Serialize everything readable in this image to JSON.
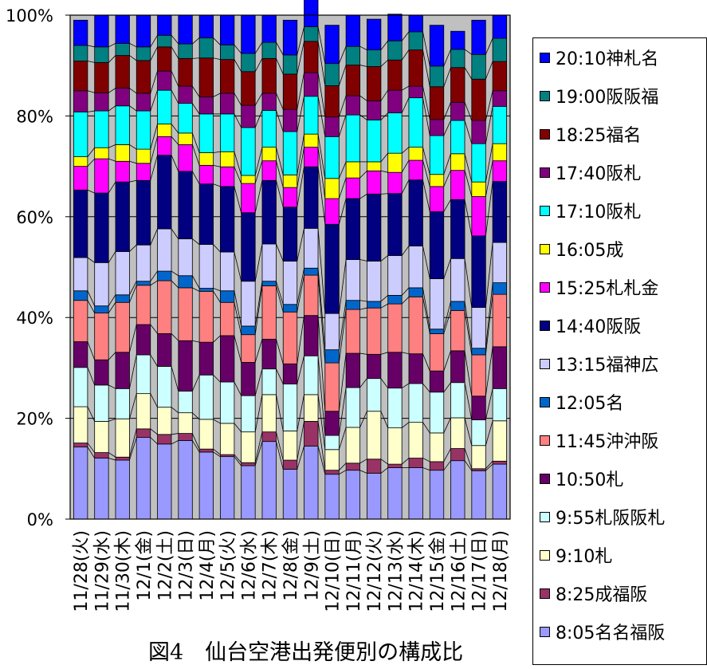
{
  "chart_data": {
    "type": "bar",
    "stacked": true,
    "percent": true,
    "caption": "図4　仙台空港出発便別の構成比",
    "yticks": [
      "0%",
      "20%",
      "40%",
      "60%",
      "80%",
      "100%"
    ],
    "ylim": [
      0,
      100
    ],
    "grid": true,
    "legend_position": "right",
    "categories": [
      "11/28(火)",
      "11/29(水)",
      "11/30(木)",
      "12/1(金)",
      "12/2(土)",
      "12/3(日)",
      "12/4(月)",
      "12/5(火)",
      "12/6(水)",
      "12/7(木)",
      "12/8(金)",
      "12/9(土)",
      "12/10(日)",
      "12/11(月)",
      "12/12(火)",
      "12/13(水)",
      "12/14(木)",
      "12/15(金)",
      "12/16(土)",
      "12/17(日)",
      "12/18(月)"
    ],
    "series": [
      {
        "name": "8:05名名福阪",
        "color": "#9999FF",
        "values": [
          14.3,
          12.1,
          11.7,
          16.2,
          14.9,
          15.6,
          13.3,
          12.4,
          10.6,
          15.4,
          9.9,
          14.5,
          8.9,
          9.7,
          9.1,
          10.2,
          10.2,
          9.7,
          11.6,
          9.6,
          10.9
        ]
      },
      {
        "name": "8:25成福阪",
        "color": "#993366",
        "values": [
          0.8,
          1.1,
          0.6,
          1.7,
          1.9,
          1.4,
          0.6,
          0.4,
          0.6,
          1.9,
          1.8,
          4.9,
          0.8,
          1.4,
          2.8,
          0.7,
          1.9,
          1.7,
          2.4,
          0.4,
          0.6
        ]
      },
      {
        "name": "9:10札",
        "color": "#FFFFCC",
        "values": [
          7.2,
          6.2,
          7.6,
          7.0,
          5.4,
          4.1,
          5.9,
          6.2,
          6.1,
          7.4,
          5.8,
          5.3,
          4.1,
          7.1,
          9.5,
          7.2,
          7.1,
          5.7,
          6.1,
          4.6,
          8.0
        ]
      },
      {
        "name": "9:55札阪阪札",
        "color": "#CCFFFF",
        "values": [
          7.8,
          7.2,
          6.0,
          7.7,
          8.1,
          4.3,
          8.8,
          8.2,
          7.2,
          5.1,
          9.3,
          7.7,
          2.8,
          7.9,
          6.5,
          7.9,
          7.7,
          8.1,
          7.0,
          5.1,
          6.4
        ]
      },
      {
        "name": "10:50札",
        "color": "#660066",
        "values": [
          5.1,
          5.0,
          7.2,
          6.0,
          6.5,
          10.0,
          6.5,
          9.2,
          6.6,
          5.9,
          4.0,
          8.0,
          4.8,
          6.8,
          4.8,
          7.1,
          5.9,
          4.2,
          6.3,
          4.7,
          8.3
        ]
      },
      {
        "name": "11:45沖沖阪",
        "color": "#FF8080",
        "values": [
          8.2,
          9.3,
          9.9,
          7.8,
          10.5,
          10.5,
          10.1,
          6.6,
          5.5,
          10.6,
          10.3,
          8.0,
          9.6,
          8.7,
          9.2,
          9.6,
          11.3,
          7.4,
          8.0,
          8.2,
          10.4
        ]
      },
      {
        "name": "12:05名",
        "color": "#0066CC",
        "values": [
          1.9,
          1.4,
          1.5,
          0.8,
          1.9,
          2.4,
          0.6,
          2.3,
          1.7,
          0.9,
          1.5,
          1.4,
          2.6,
          1.8,
          1.3,
          1.7,
          1.8,
          0.9,
          1.8,
          1.3,
          2.3
        ]
      },
      {
        "name": "13:15福神広",
        "color": "#CCCCFF",
        "values": [
          6.6,
          8.6,
          8.6,
          7.2,
          8.4,
          7.3,
          8.7,
          7.7,
          8.9,
          7.4,
          8.6,
          7.9,
          7.2,
          8.1,
          8.0,
          7.9,
          8.3,
          10.0,
          8.5,
          8.1,
          8.0
        ]
      },
      {
        "name": "14:40阪阪",
        "color": "#000080",
        "values": [
          13.4,
          13.8,
          13.8,
          12.8,
          14.6,
          13.4,
          12.0,
          13.0,
          13.6,
          12.6,
          10.7,
          12.2,
          17.7,
          12.1,
          13.3,
          12.3,
          13.1,
          13.3,
          11.7,
          14.2,
          12.1
        ]
      },
      {
        "name": "15:25札札金",
        "color": "#FF00FF",
        "values": [
          4.7,
          6.8,
          4.1,
          3.4,
          3.7,
          5.3,
          3.7,
          3.9,
          5.8,
          3.9,
          3.9,
          3.9,
          5.1,
          4.1,
          4.6,
          4.2,
          3.9,
          5.0,
          5.8,
          7.8,
          4.1
        ]
      },
      {
        "name": "16:05成",
        "color": "#FFFF00",
        "values": [
          1.9,
          2.2,
          3.3,
          2.8,
          2.5,
          2.3,
          2.5,
          3.0,
          1.6,
          2.7,
          2.5,
          2.6,
          4.0,
          3.2,
          1.8,
          3.8,
          2.6,
          2.4,
          3.3,
          2.9,
          3.4
        ]
      },
      {
        "name": "17:10阪札",
        "color": "#00FFFF",
        "values": [
          8.9,
          7.3,
          7.7,
          7.6,
          6.7,
          5.9,
          7.7,
          7.5,
          9.5,
          7.3,
          8.6,
          7.5,
          8.3,
          9.3,
          8.3,
          8.0,
          9.8,
          7.7,
          6.6,
          7.6,
          7.4
        ]
      },
      {
        "name": "17:40阪札",
        "color": "#800080",
        "values": [
          4.2,
          3.6,
          3.5,
          3.5,
          3.8,
          3.4,
          3.4,
          4.1,
          4.4,
          3.4,
          4.4,
          4.7,
          3.9,
          3.8,
          3.8,
          4.5,
          2.3,
          3.2,
          3.6,
          4.6,
          3.1
        ]
      },
      {
        "name": "18:25福名",
        "color": "#800000",
        "values": [
          5.9,
          6.0,
          6.5,
          6.5,
          4.8,
          5.5,
          7.7,
          6.7,
          6.7,
          6.9,
          7.0,
          6.2,
          6.2,
          6.1,
          6.8,
          6.0,
          7.2,
          6.5,
          6.9,
          8.2,
          5.8
        ]
      },
      {
        "name": "19:00阪阪福",
        "color": "#008080",
        "values": [
          3.1,
          3.1,
          2.4,
          2.7,
          2.3,
          2.9,
          4.0,
          2.9,
          3.6,
          3.2,
          3.8,
          2.9,
          4.4,
          3.7,
          3.3,
          3.8,
          3.6,
          4.1,
          3.6,
          4.9,
          4.6
        ]
      },
      {
        "name": "20:10神札名",
        "color": "#0000FF",
        "values": [
          5.0,
          6.3,
          5.6,
          6.3,
          4.0,
          5.7,
          4.5,
          5.9,
          7.6,
          5.4,
          6.9,
          6.9,
          7.6,
          6.2,
          6.1,
          5.3,
          3.3,
          8.1,
          3.6,
          6.8,
          4.6
        ]
      }
    ]
  }
}
